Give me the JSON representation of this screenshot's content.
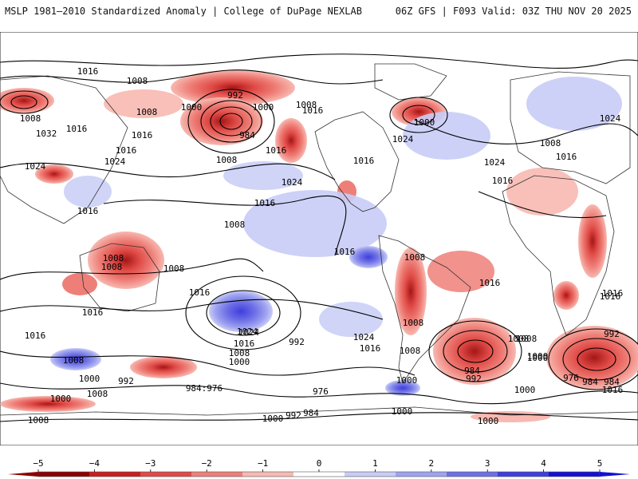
{
  "header": {
    "left": "MSLP 1981–2010 Standardized Anomaly | College of DuPage NEXLAB",
    "right": "06Z GFS | F093 Valid: 03Z THU NOV 20 2025"
  },
  "colorbar": {
    "min": -5,
    "max": 5,
    "ticks": [
      -5,
      -4,
      -3,
      -2,
      -1,
      0,
      1,
      2,
      3,
      4,
      5
    ],
    "tick_labels": [
      "−5",
      "−4",
      "−3",
      "−2",
      "−1",
      "0",
      "1",
      "2",
      "3",
      "4",
      "5"
    ],
    "colors": [
      "#8b0000",
      "#c81e1e",
      "#e04a46",
      "#ee7f78",
      "#f7b9b1",
      "#ffffff",
      "#c8ccf6",
      "#9fa3ef",
      "#6e70e6",
      "#3f3ede",
      "#1410d2"
    ]
  },
  "isobar_labels": [
    {
      "text": "1016"
    },
    {
      "text": "1008"
    },
    {
      "text": "1008"
    },
    {
      "text": "992"
    },
    {
      "text": "1000"
    },
    {
      "text": "1000"
    },
    {
      "text": "1008"
    },
    {
      "text": "1016"
    },
    {
      "text": "1016"
    },
    {
      "text": "1032"
    },
    {
      "text": "1016"
    },
    {
      "text": "984"
    },
    {
      "text": "1016"
    },
    {
      "text": "1024"
    },
    {
      "text": "1024"
    },
    {
      "text": "1008"
    },
    {
      "text": "1024"
    },
    {
      "text": "1016"
    },
    {
      "text": "1024"
    },
    {
      "text": "1016"
    },
    {
      "text": "1016"
    },
    {
      "text": "1008"
    },
    {
      "text": "1008"
    },
    {
      "text": "1016"
    },
    {
      "text": "1008"
    },
    {
      "text": "1008"
    },
    {
      "text": "1000"
    },
    {
      "text": "1016"
    },
    {
      "text": "1024"
    },
    {
      "text": "1016"
    },
    {
      "text": "1016"
    },
    {
      "text": "1016"
    },
    {
      "text": "1024"
    },
    {
      "text": "1024"
    },
    {
      "text": "1008"
    },
    {
      "text": "1008"
    },
    {
      "text": "1008"
    },
    {
      "text": "1008"
    },
    {
      "text": "1016"
    },
    {
      "text": "1016"
    },
    {
      "text": "1016"
    },
    {
      "text": "1024"
    },
    {
      "text": "1016"
    },
    {
      "text": "1000"
    },
    {
      "text": "1008"
    },
    {
      "text": "1016"
    },
    {
      "text": "1024"
    },
    {
      "text": "1016"
    },
    {
      "text": "1008"
    },
    {
      "text": "992"
    },
    {
      "text": "984"
    },
    {
      "text": "1000"
    },
    {
      "text": "1000"
    },
    {
      "text": "984:976"
    },
    {
      "text": "992"
    },
    {
      "text": "1008"
    },
    {
      "text": "1000"
    },
    {
      "text": "1016"
    },
    {
      "text": "1008"
    },
    {
      "text": "1000"
    },
    {
      "text": "1008"
    },
    {
      "text": "976"
    },
    {
      "text": "1000"
    },
    {
      "text": "992"
    },
    {
      "text": "984"
    },
    {
      "text": "1000"
    },
    {
      "text": "1008"
    },
    {
      "text": "984"
    },
    {
      "text": "992"
    },
    {
      "text": "1008"
    },
    {
      "text": "1000"
    },
    {
      "text": "992"
    },
    {
      "text": "976"
    },
    {
      "text": "984"
    },
    {
      "text": "1000"
    },
    {
      "text": "1016"
    },
    {
      "text": "1000"
    }
  ]
}
